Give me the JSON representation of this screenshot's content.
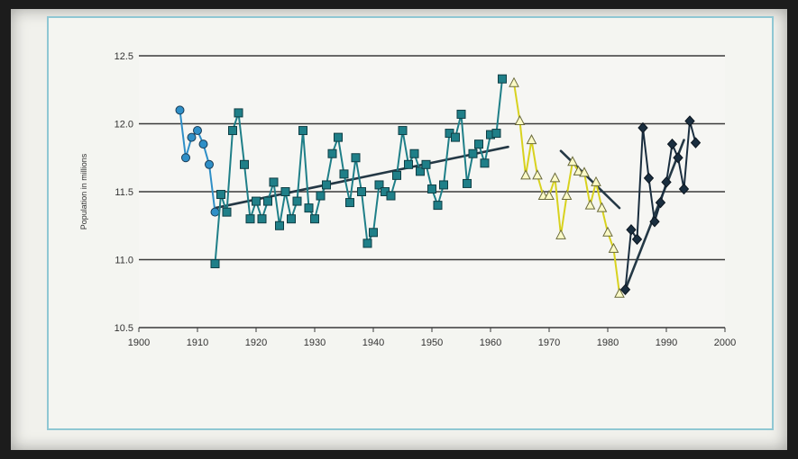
{
  "chart_data": {
    "type": "line",
    "title": "",
    "xlabel": "",
    "ylabel": "Population in millions",
    "xlim": [
      1900,
      2000
    ],
    "ylim": [
      10.5,
      12.5
    ],
    "x_ticks": [
      1900,
      1910,
      1920,
      1930,
      1940,
      1950,
      1960,
      1970,
      1980,
      1990,
      2000
    ],
    "y_ticks": [
      "10.5",
      "11.0",
      "11.5",
      "12.0",
      "12.5"
    ],
    "grid": "horizontal",
    "legend": "none",
    "series": [
      {
        "marker": "circle",
        "color": "#2f8fc7",
        "x": [
          1907,
          1908,
          1909,
          1910,
          1911,
          1912,
          1913
        ],
        "y": [
          12.1,
          11.75,
          11.9,
          11.95,
          11.85,
          11.7,
          11.35
        ]
      },
      {
        "marker": "square",
        "color": "#1f7f88",
        "x": [
          1913,
          1914,
          1915,
          1916,
          1917,
          1918,
          1919,
          1920,
          1921,
          1922,
          1923,
          1924,
          1925,
          1926,
          1927,
          1928,
          1929,
          1930,
          1931,
          1932,
          1933,
          1934,
          1935,
          1936,
          1937,
          1938,
          1939,
          1940,
          1941,
          1942,
          1943,
          1944,
          1945,
          1946,
          1947,
          1948,
          1949,
          1950,
          1951,
          1952,
          1953,
          1954,
          1955,
          1956,
          1957,
          1958,
          1959,
          1960,
          1961,
          1962,
          1963,
          1964
        ],
        "y": [
          10.97,
          11.48,
          11.35,
          11.95,
          12.08,
          11.7,
          11.3,
          11.43,
          11.3,
          11.43,
          11.57,
          11.25,
          11.5,
          11.3,
          11.43,
          11.95,
          11.38,
          11.3,
          11.47,
          11.55,
          11.78,
          11.9,
          11.63,
          11.42,
          11.75,
          11.5,
          11.12,
          11.2,
          11.55,
          11.5,
          11.47,
          11.62,
          11.95,
          11.7,
          11.78,
          11.65,
          11.7,
          11.52,
          11.4,
          11.55,
          11.93,
          11.9,
          12.07,
          11.56,
          11.78,
          11.85,
          11.71,
          11.92,
          11.93,
          12.33,
          null,
          null
        ]
      },
      {
        "marker": "triangle",
        "color": "#d8d21e",
        "x": [
          1964,
          1965,
          1966,
          1967,
          1968,
          1969,
          1970,
          1971,
          1972,
          1973,
          1974,
          1975,
          1976,
          1977,
          1978,
          1979,
          1980,
          1981,
          1982,
          1983
        ],
        "y": [
          12.3,
          12.02,
          11.62,
          11.88,
          11.62,
          11.47,
          11.47,
          11.6,
          11.18,
          11.47,
          11.72,
          11.65,
          11.64,
          11.4,
          11.57,
          11.38,
          11.2,
          11.08,
          10.75,
          null
        ]
      },
      {
        "marker": "diamond",
        "color": "#1a2e3f",
        "x": [
          1983,
          1984,
          1985,
          1986,
          1987,
          1988,
          1989,
          1990,
          1991,
          1992,
          1993,
          1994,
          1995
        ],
        "y": [
          10.78,
          11.22,
          11.15,
          11.97,
          11.6,
          11.28,
          11.42,
          11.57,
          11.85,
          11.75,
          11.52,
          12.02,
          11.86
        ]
      }
    ],
    "trend_lines": [
      {
        "color": "#243845",
        "x": [
          1913,
          1963
        ],
        "y": [
          11.38,
          11.83
        ]
      },
      {
        "color": "#243845",
        "x": [
          1972,
          1982
        ],
        "y": [
          11.8,
          11.38
        ]
      },
      {
        "color": "#243845",
        "x": [
          1983,
          1993
        ],
        "y": [
          10.78,
          11.88
        ]
      }
    ]
  }
}
